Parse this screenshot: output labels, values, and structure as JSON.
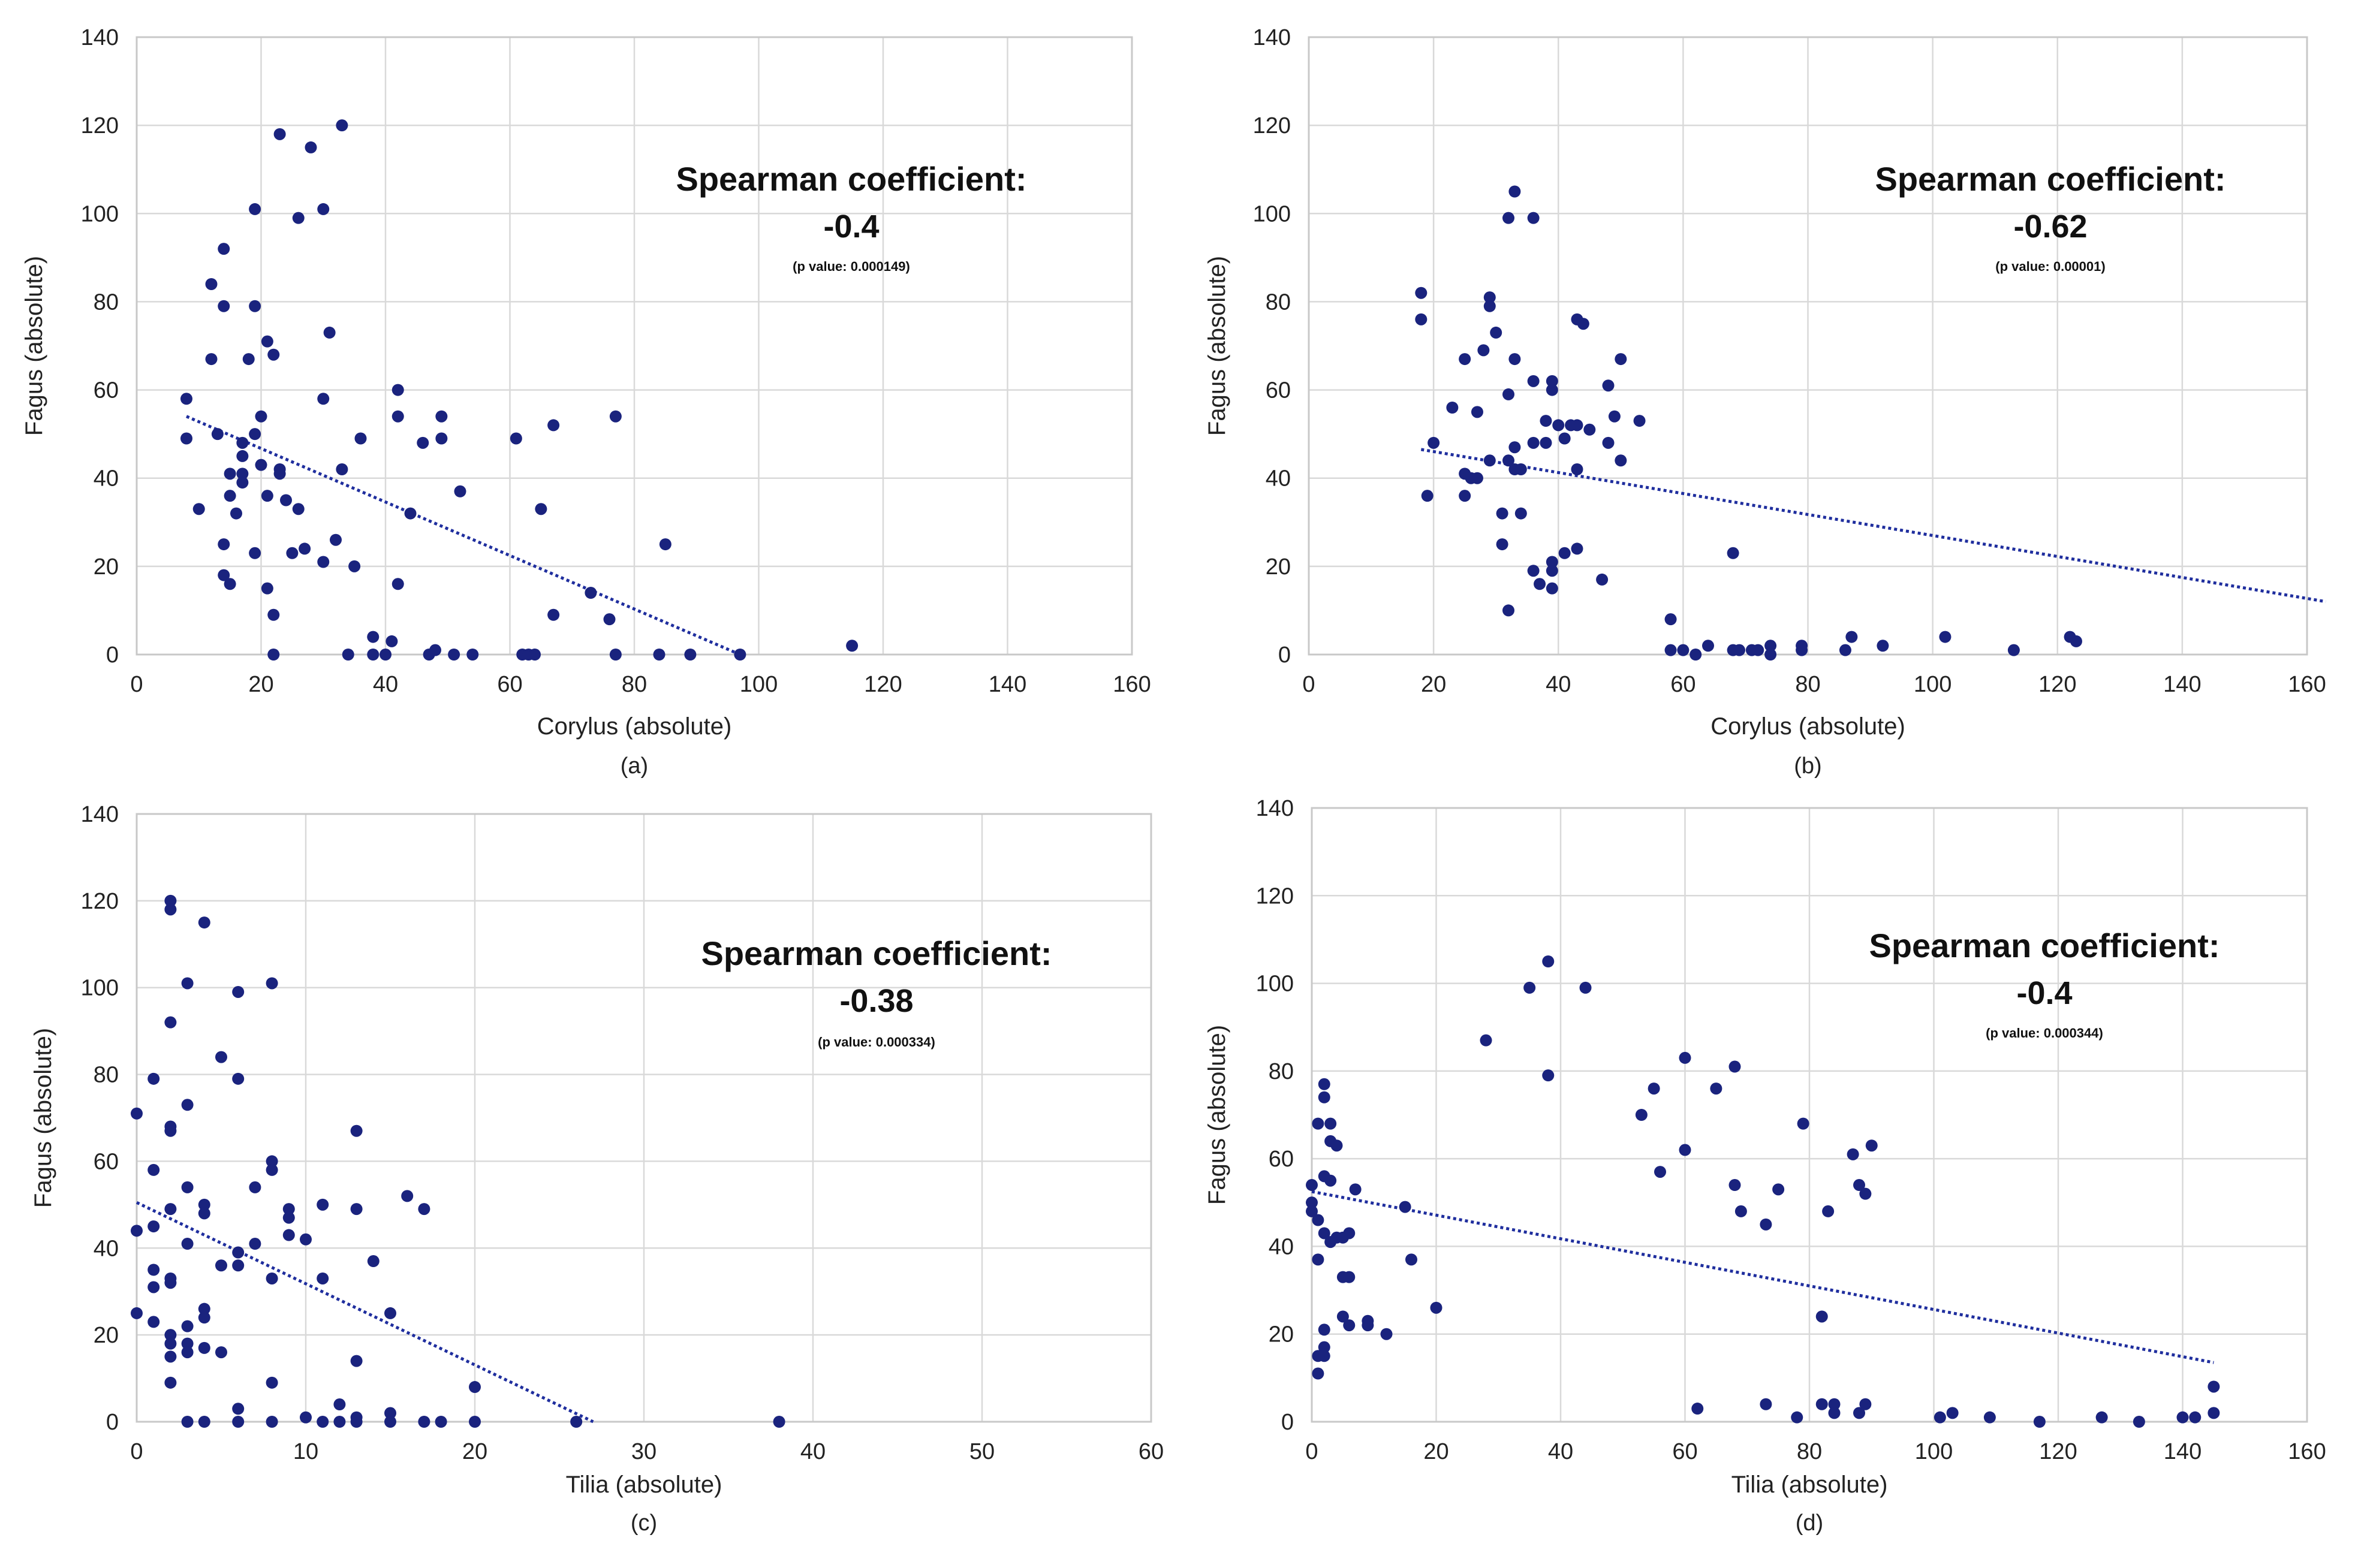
{
  "chart_data": [
    {
      "type": "scatter",
      "panel": "(a)",
      "xlabel": "Corylus (absolute)",
      "ylabel": "Fagus (absolute)",
      "xlim": [
        0,
        160
      ],
      "ylim": [
        0,
        140
      ],
      "xticks": [
        0,
        20,
        40,
        60,
        80,
        100,
        120,
        140,
        160
      ],
      "yticks": [
        0,
        20,
        40,
        60,
        80,
        100,
        120,
        140
      ],
      "grid": true,
      "annotation": {
        "title": "Spearman coefficient:",
        "value": "‑0.4",
        "p": "(p value: 0.000149)"
      },
      "trendline": {
        "x": [
          8,
          97
        ],
        "y": [
          54,
          0
        ]
      },
      "marker_color": "#1a237e",
      "points": [
        [
          23,
          118
        ],
        [
          33,
          120
        ],
        [
          28,
          115
        ],
        [
          19,
          101
        ],
        [
          30,
          101
        ],
        [
          26,
          99
        ],
        [
          14,
          92
        ],
        [
          12,
          84
        ],
        [
          14,
          79
        ],
        [
          19,
          79
        ],
        [
          31,
          73
        ],
        [
          21,
          71
        ],
        [
          22,
          68
        ],
        [
          12,
          67
        ],
        [
          18,
          67
        ],
        [
          8,
          58
        ],
        [
          30,
          58
        ],
        [
          42,
          60
        ],
        [
          20,
          54
        ],
        [
          42,
          54
        ],
        [
          49,
          54
        ],
        [
          77,
          54
        ],
        [
          67,
          52
        ],
        [
          8,
          49
        ],
        [
          13,
          50
        ],
        [
          19,
          50
        ],
        [
          61,
          49
        ],
        [
          49,
          49
        ],
        [
          46,
          48
        ],
        [
          36,
          49
        ],
        [
          17,
          48
        ],
        [
          17,
          45
        ],
        [
          20,
          43
        ],
        [
          23,
          42
        ],
        [
          23,
          41
        ],
        [
          15,
          41
        ],
        [
          17,
          41
        ],
        [
          17,
          39
        ],
        [
          33,
          42
        ],
        [
          21,
          36
        ],
        [
          15,
          36
        ],
        [
          24,
          35
        ],
        [
          26,
          33
        ],
        [
          10,
          33
        ],
        [
          16,
          32
        ],
        [
          44,
          32
        ],
        [
          65,
          33
        ],
        [
          52,
          37
        ],
        [
          32,
          26
        ],
        [
          14,
          25
        ],
        [
          27,
          24
        ],
        [
          25,
          23
        ],
        [
          19,
          23
        ],
        [
          30,
          21
        ],
        [
          35,
          20
        ],
        [
          14,
          18
        ],
        [
          15,
          16
        ],
        [
          42,
          16
        ],
        [
          21,
          15
        ],
        [
          73,
          14
        ],
        [
          76,
          8
        ],
        [
          85,
          25
        ],
        [
          22,
          9
        ],
        [
          67,
          9
        ],
        [
          38,
          4
        ],
        [
          41,
          3
        ],
        [
          115,
          2
        ],
        [
          22,
          0
        ],
        [
          34,
          0
        ],
        [
          38,
          0
        ],
        [
          40,
          0
        ],
        [
          47,
          0
        ],
        [
          48,
          1
        ],
        [
          51,
          0
        ],
        [
          54,
          0
        ],
        [
          62,
          0
        ],
        [
          63,
          0
        ],
        [
          64,
          0
        ],
        [
          77,
          0
        ],
        [
          84,
          0
        ],
        [
          89,
          0
        ],
        [
          97,
          0
        ]
      ]
    },
    {
      "type": "scatter",
      "panel": "(b)",
      "xlabel": "Corylus (absolute)",
      "ylabel": "Fagus (absolute)",
      "xlim": [
        0,
        160
      ],
      "ylim": [
        0,
        140
      ],
      "xticks": [
        0,
        20,
        40,
        60,
        80,
        100,
        120,
        140,
        160
      ],
      "yticks": [
        0,
        20,
        40,
        60,
        80,
        100,
        120,
        140
      ],
      "grid": true,
      "annotation": {
        "title": "Spearman coefficient:",
        "value": "‑0.62",
        "p": "(p value: 0.00001)"
      },
      "trendline": {
        "x": [
          18,
          163
        ],
        "y": [
          46.5,
          12
        ]
      },
      "marker_color": "#1a237e",
      "points": [
        [
          33,
          105
        ],
        [
          32,
          99
        ],
        [
          36,
          99
        ],
        [
          18,
          82
        ],
        [
          29,
          81
        ],
        [
          29,
          79
        ],
        [
          18,
          76
        ],
        [
          43,
          76
        ],
        [
          44,
          75
        ],
        [
          30,
          73
        ],
        [
          28,
          69
        ],
        [
          25,
          67
        ],
        [
          33,
          67
        ],
        [
          50,
          67
        ],
        [
          39,
          62
        ],
        [
          39,
          60
        ],
        [
          32,
          59
        ],
        [
          36,
          62
        ],
        [
          48,
          61
        ],
        [
          27,
          55
        ],
        [
          23,
          56
        ],
        [
          53,
          53
        ],
        [
          49,
          54
        ],
        [
          42,
          52
        ],
        [
          43,
          52
        ],
        [
          40,
          52
        ],
        [
          38,
          53
        ],
        [
          45,
          51
        ],
        [
          20,
          48
        ],
        [
          38,
          48
        ],
        [
          33,
          47
        ],
        [
          36,
          48
        ],
        [
          41,
          49
        ],
        [
          48,
          48
        ],
        [
          50,
          44
        ],
        [
          32,
          44
        ],
        [
          29,
          44
        ],
        [
          33,
          42
        ],
        [
          34,
          42
        ],
        [
          43,
          42
        ],
        [
          25,
          41
        ],
        [
          27,
          40
        ],
        [
          26,
          40
        ],
        [
          19,
          36
        ],
        [
          25,
          36
        ],
        [
          31,
          32
        ],
        [
          34,
          32
        ],
        [
          39,
          21
        ],
        [
          39,
          19
        ],
        [
          41,
          23
        ],
        [
          43,
          24
        ],
        [
          36,
          19
        ],
        [
          31,
          25
        ],
        [
          37,
          16
        ],
        [
          39,
          15
        ],
        [
          47,
          17
        ],
        [
          32,
          10
        ],
        [
          68,
          23
        ],
        [
          58,
          8
        ],
        [
          58,
          1
        ],
        [
          60,
          1
        ],
        [
          62,
          0
        ],
        [
          64,
          2
        ],
        [
          68,
          1
        ],
        [
          69,
          1
        ],
        [
          71,
          1
        ],
        [
          72,
          1
        ],
        [
          74,
          2
        ],
        [
          74,
          0
        ],
        [
          79,
          1
        ],
        [
          79,
          2
        ],
        [
          86,
          1
        ],
        [
          87,
          4
        ],
        [
          92,
          2
        ],
        [
          102,
          4
        ],
        [
          113,
          1
        ],
        [
          122,
          4
        ],
        [
          123,
          3
        ]
      ]
    },
    {
      "type": "scatter",
      "panel": "(c)",
      "xlabel": "Tilia (absolute)",
      "ylabel": "Fagus (absolute)",
      "xlim": [
        0,
        60
      ],
      "ylim": [
        0,
        140
      ],
      "xticks": [
        0,
        10,
        20,
        30,
        40,
        50,
        60
      ],
      "yticks": [
        0,
        20,
        40,
        60,
        80,
        100,
        120,
        140
      ],
      "grid": true,
      "annotation": {
        "title": "Spearman coefficient:",
        "value": "‑0.38",
        "p": "(p value: 0.000334)"
      },
      "trendline": {
        "x": [
          0,
          27
        ],
        "y": [
          50.5,
          0
        ]
      },
      "marker_color": "#1a237e",
      "points": [
        [
          2,
          120
        ],
        [
          2,
          118
        ],
        [
          4,
          115
        ],
        [
          3,
          101
        ],
        [
          8,
          101
        ],
        [
          6,
          99
        ],
        [
          2,
          92
        ],
        [
          5,
          84
        ],
        [
          1,
          79
        ],
        [
          6,
          79
        ],
        [
          3,
          73
        ],
        [
          0,
          71
        ],
        [
          2,
          68
        ],
        [
          2,
          67
        ],
        [
          13,
          67
        ],
        [
          8,
          60
        ],
        [
          1,
          58
        ],
        [
          8,
          58
        ],
        [
          7,
          54
        ],
        [
          3,
          54
        ],
        [
          16,
          52
        ],
        [
          17,
          49
        ],
        [
          11,
          50
        ],
        [
          4,
          50
        ],
        [
          4,
          48
        ],
        [
          9,
          49
        ],
        [
          9,
          47
        ],
        [
          13,
          49
        ],
        [
          2,
          49
        ],
        [
          0,
          44
        ],
        [
          1,
          45
        ],
        [
          7,
          41
        ],
        [
          3,
          41
        ],
        [
          10,
          42
        ],
        [
          1,
          35
        ],
        [
          2,
          33
        ],
        [
          5,
          36
        ],
        [
          6,
          36
        ],
        [
          6,
          39
        ],
        [
          8,
          33
        ],
        [
          11,
          33
        ],
        [
          1,
          31
        ],
        [
          2,
          32
        ],
        [
          14,
          37
        ],
        [
          9,
          43
        ],
        [
          4,
          26
        ],
        [
          4,
          24
        ],
        [
          3,
          22
        ],
        [
          2,
          20
        ],
        [
          1,
          23
        ],
        [
          2,
          18
        ],
        [
          3,
          18
        ],
        [
          5,
          16
        ],
        [
          4,
          17
        ],
        [
          2,
          15
        ],
        [
          3,
          16
        ],
        [
          0,
          25
        ],
        [
          15,
          25
        ],
        [
          13,
          14
        ],
        [
          2,
          9
        ],
        [
          8,
          9
        ],
        [
          20,
          8
        ],
        [
          6,
          3
        ],
        [
          12,
          4
        ],
        [
          13,
          1
        ],
        [
          15,
          2
        ],
        [
          10,
          1
        ],
        [
          3,
          0
        ],
        [
          4,
          0
        ],
        [
          6,
          0
        ],
        [
          8,
          0
        ],
        [
          11,
          0
        ],
        [
          12,
          0
        ],
        [
          13,
          0
        ],
        [
          15,
          0
        ],
        [
          17,
          0
        ],
        [
          18,
          0
        ],
        [
          20,
          0
        ],
        [
          26,
          0
        ],
        [
          38,
          0
        ]
      ]
    },
    {
      "type": "scatter",
      "panel": "(d)",
      "xlabel": "Tilia (absolute)",
      "ylabel": "Fagus (absolute)",
      "xlim": [
        0,
        160
      ],
      "ylim": [
        0,
        140
      ],
      "xticks": [
        0,
        20,
        40,
        60,
        80,
        100,
        120,
        140,
        160
      ],
      "yticks": [
        0,
        20,
        40,
        60,
        80,
        100,
        120,
        140
      ],
      "grid": true,
      "annotation": {
        "title": "Spearman coefficient:",
        "value": "‑0.4",
        "p": "(p value: 0.000344)"
      },
      "trendline": {
        "x": [
          0,
          145
        ],
        "y": [
          52.5,
          13.5
        ]
      },
      "marker_color": "#1a237e",
      "points": [
        [
          38,
          105
        ],
        [
          35,
          99
        ],
        [
          44,
          99
        ],
        [
          28,
          87
        ],
        [
          60,
          83
        ],
        [
          68,
          81
        ],
        [
          38,
          79
        ],
        [
          2,
          77
        ],
        [
          55,
          76
        ],
        [
          65,
          76
        ],
        [
          2,
          74
        ],
        [
          53,
          70
        ],
        [
          1,
          68
        ],
        [
          3,
          68
        ],
        [
          79,
          68
        ],
        [
          3,
          64
        ],
        [
          4,
          63
        ],
        [
          60,
          62
        ],
        [
          87,
          61
        ],
        [
          90,
          63
        ],
        [
          88,
          54
        ],
        [
          89,
          52
        ],
        [
          68,
          54
        ],
        [
          75,
          53
        ],
        [
          56,
          57
        ],
        [
          0,
          54
        ],
        [
          2,
          56
        ],
        [
          3,
          55
        ],
        [
          7,
          53
        ],
        [
          0,
          50
        ],
        [
          0,
          48
        ],
        [
          15,
          49
        ],
        [
          83,
          48
        ],
        [
          69,
          48
        ],
        [
          73,
          45
        ],
        [
          1,
          46
        ],
        [
          2,
          43
        ],
        [
          4,
          42
        ],
        [
          5,
          42
        ],
        [
          6,
          43
        ],
        [
          3,
          41
        ],
        [
          1,
          37
        ],
        [
          16,
          37
        ],
        [
          5,
          33
        ],
        [
          6,
          33
        ],
        [
          5,
          24
        ],
        [
          9,
          23
        ],
        [
          9,
          22
        ],
        [
          6,
          22
        ],
        [
          2,
          21
        ],
        [
          12,
          20
        ],
        [
          20,
          26
        ],
        [
          82,
          24
        ],
        [
          2,
          17
        ],
        [
          1,
          15
        ],
        [
          2,
          15
        ],
        [
          1,
          11
        ],
        [
          62,
          3
        ],
        [
          73,
          4
        ],
        [
          82,
          4
        ],
        [
          84,
          4
        ],
        [
          89,
          4
        ],
        [
          84,
          2
        ],
        [
          88,
          2
        ],
        [
          78,
          1
        ],
        [
          101,
          1
        ],
        [
          103,
          2
        ],
        [
          109,
          1
        ],
        [
          117,
          0
        ],
        [
          127,
          1
        ],
        [
          133,
          0
        ],
        [
          140,
          1
        ],
        [
          142,
          1
        ],
        [
          145,
          2
        ],
        [
          145,
          8
        ]
      ]
    }
  ]
}
